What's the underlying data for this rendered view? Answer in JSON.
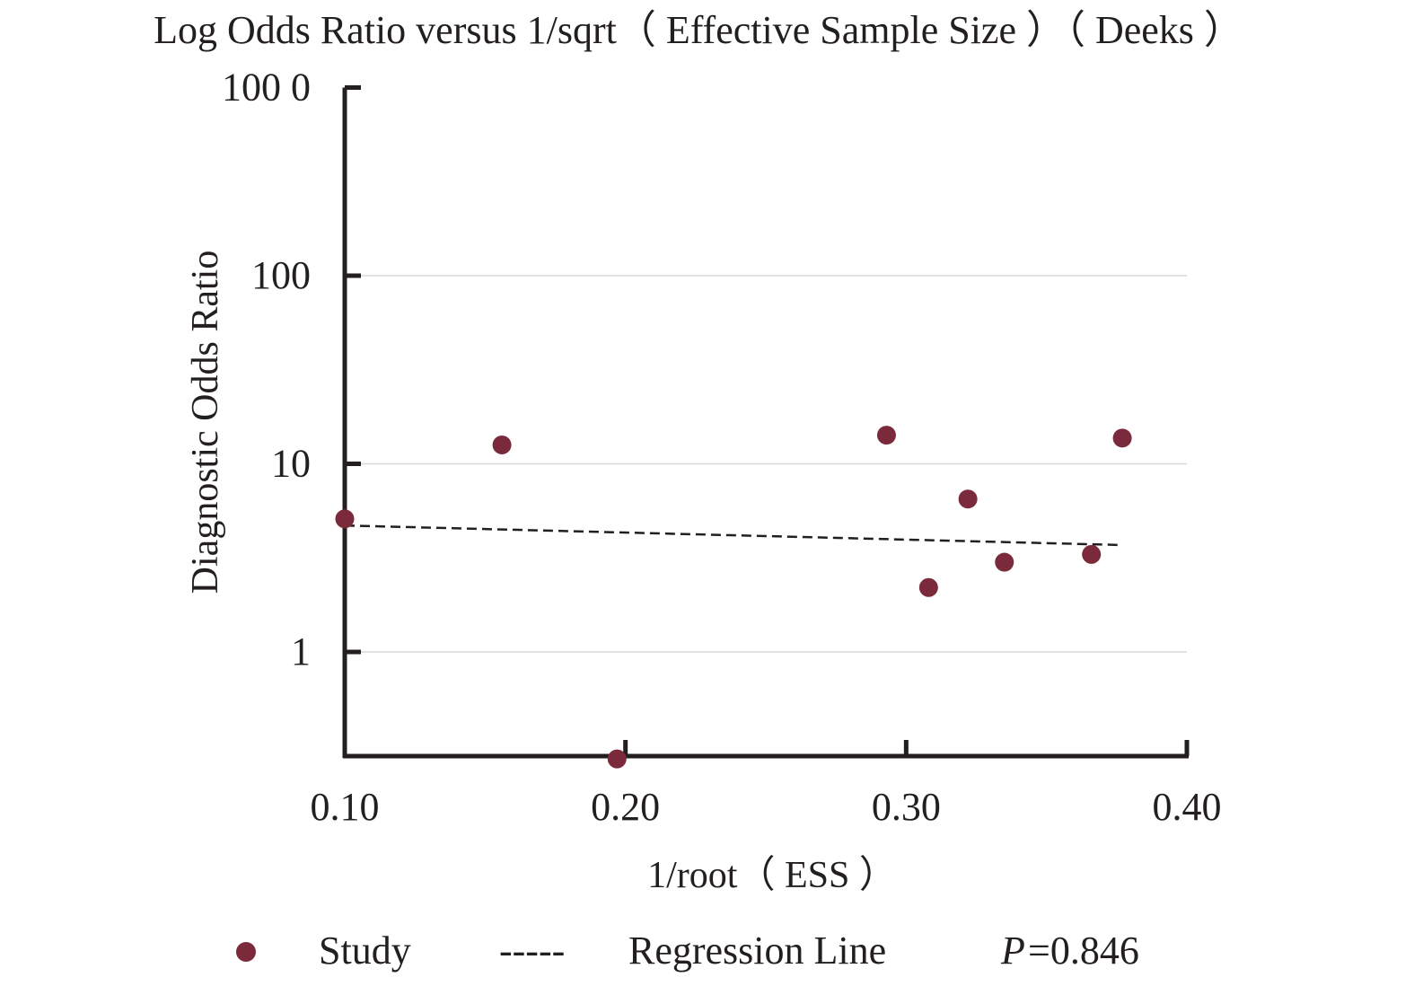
{
  "chart_data": {
    "type": "scatter",
    "title": "Log Odds Ratio versus 1/sqrt（ Effective Sample Size ）（ Deeks ）",
    "xlabel": "1/root（ ESS ）",
    "ylabel": "Diagnostic Odds Ratio",
    "x_scale": "linear",
    "y_scale": "log",
    "xlim": [
      0.1,
      0.4
    ],
    "ylim": [
      0.27,
      1000
    ],
    "x_ticks": [
      0.1,
      0.2,
      0.3,
      0.4
    ],
    "x_tick_labels": [
      "0.10",
      "0.20",
      "0.30",
      "0.40"
    ],
    "y_ticks": [
      1,
      10,
      100,
      1000
    ],
    "y_tick_labels": [
      "1",
      "10",
      "100",
      "100 0"
    ],
    "grid": "horizontal",
    "series": [
      {
        "name": "Study",
        "kind": "points",
        "color": "#7b2a3b",
        "x": [
          0.1,
          0.156,
          0.197,
          0.293,
          0.308,
          0.322,
          0.335,
          0.366,
          0.377
        ],
        "y": [
          5.1,
          12.6,
          0.27,
          14.2,
          2.2,
          6.5,
          3.0,
          3.3,
          13.7
        ]
      },
      {
        "name": "Regression Line",
        "kind": "dashed-line",
        "color": "#231f20",
        "x": [
          0.1,
          0.377
        ],
        "y": [
          4.7,
          3.7
        ]
      }
    ],
    "legend": {
      "position": "bottom",
      "items": [
        {
          "label": "Study",
          "marker": "dot",
          "color": "#7b2a3b"
        },
        {
          "label": "Regression Line",
          "marker": "-----",
          "color": "#231f20"
        }
      ],
      "p_label": "P",
      "p_value": "=0.846"
    }
  }
}
